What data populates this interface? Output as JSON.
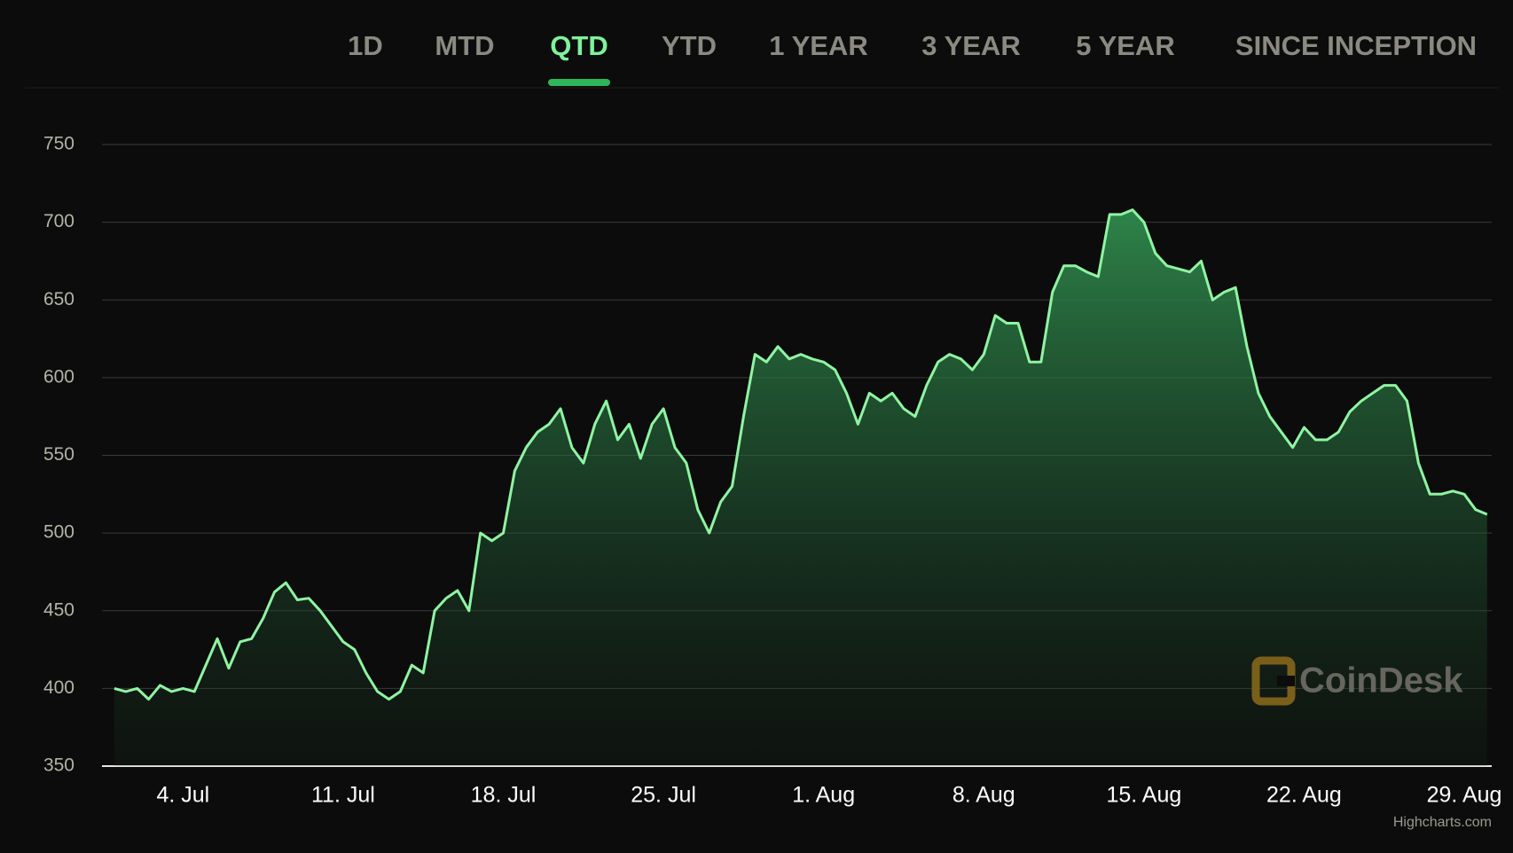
{
  "tabs": [
    {
      "label": "1D",
      "selected": false
    },
    {
      "label": "MTD",
      "selected": false
    },
    {
      "label": "QTD",
      "selected": true
    },
    {
      "label": "YTD",
      "selected": false
    },
    {
      "label": "1 YEAR",
      "selected": false
    },
    {
      "label": "3 YEAR",
      "selected": false
    },
    {
      "label": "5 YEAR",
      "selected": false
    },
    {
      "label": "SINCE INCEPTION",
      "selected": false
    }
  ],
  "watermark": "CoinDesk",
  "credits": "Highcharts.com",
  "chart_data": {
    "type": "area",
    "x": [
      1,
      1.5,
      2,
      2.5,
      3,
      3.5,
      4,
      4.5,
      5,
      5.5,
      6,
      6.5,
      7,
      7.5,
      8,
      8.5,
      9,
      9.5,
      10,
      10.5,
      11,
      11.5,
      12,
      12.5,
      13,
      13.5,
      14,
      14.5,
      15,
      15.5,
      16,
      16.5,
      17,
      17.5,
      18,
      18.5,
      19,
      19.5,
      20,
      20.5,
      21,
      21.5,
      22,
      22.5,
      23,
      23.5,
      24,
      24.5,
      25,
      25.5,
      26,
      26.5,
      27,
      27.5,
      28,
      28.5,
      29,
      29.5,
      30,
      30.5,
      31,
      31.5,
      32,
      32.5,
      33,
      33.5,
      34,
      34.5,
      35,
      35.5,
      36,
      36.5,
      37,
      37.5,
      38,
      38.5,
      39,
      39.5,
      40,
      40.5,
      41,
      41.5,
      42,
      42.5,
      43,
      43.5,
      44,
      44.5,
      45,
      45.5,
      46,
      46.5,
      47,
      47.5,
      48,
      48.5,
      49,
      49.5,
      50,
      50.5,
      51,
      51.5,
      52,
      52.5,
      53,
      53.5,
      54,
      54.5,
      55,
      55.5,
      56,
      56.5,
      57,
      57.5,
      58,
      58.5,
      59,
      59.5,
      60,
      60.5,
      61
    ],
    "series": [
      {
        "color": "#8ff5a2",
        "values": [
          400,
          398,
          400,
          393,
          402,
          398,
          400,
          398,
          415,
          432,
          413,
          430,
          432,
          445,
          462,
          468,
          457,
          458,
          450,
          440,
          430,
          425,
          410,
          398,
          393,
          398,
          415,
          410,
          450,
          458,
          463,
          450,
          500,
          495,
          500,
          540,
          555,
          565,
          570,
          580,
          555,
          545,
          570,
          585,
          560,
          570,
          548,
          570,
          580,
          555,
          545,
          515,
          500,
          520,
          530,
          575,
          615,
          610,
          620,
          612,
          615,
          612,
          610,
          605,
          590,
          570,
          590,
          585,
          590,
          580,
          575,
          595,
          610,
          615,
          612,
          605,
          615,
          640,
          635,
          635,
          610,
          610,
          655,
          672,
          672,
          668,
          665,
          705,
          705,
          708,
          700,
          680,
          672,
          670,
          668,
          675,
          650,
          655,
          658,
          620,
          590,
          575,
          565,
          555,
          568,
          560,
          560,
          565,
          578,
          585,
          590,
          595,
          595,
          585,
          545,
          525,
          525,
          527,
          525,
          515,
          512
        ]
      }
    ],
    "xlim": [
      0.46,
      61.2
    ],
    "xticks": [
      {
        "value": 4,
        "label": "4. Jul"
      },
      {
        "value": 11,
        "label": "11. Jul"
      },
      {
        "value": 18,
        "label": "18. Jul"
      },
      {
        "value": 25,
        "label": "25. Jul"
      },
      {
        "value": 32,
        "label": "1. Aug"
      },
      {
        "value": 39,
        "label": "8. Aug"
      },
      {
        "value": 46,
        "label": "15. Aug"
      },
      {
        "value": 53,
        "label": "22. Aug"
      },
      {
        "value": 60,
        "label": "29. Aug"
      }
    ],
    "ylim": [
      350,
      750
    ],
    "yticks": [
      350,
      400,
      450,
      500,
      550,
      600,
      650,
      700,
      750
    ],
    "grid": true
  }
}
